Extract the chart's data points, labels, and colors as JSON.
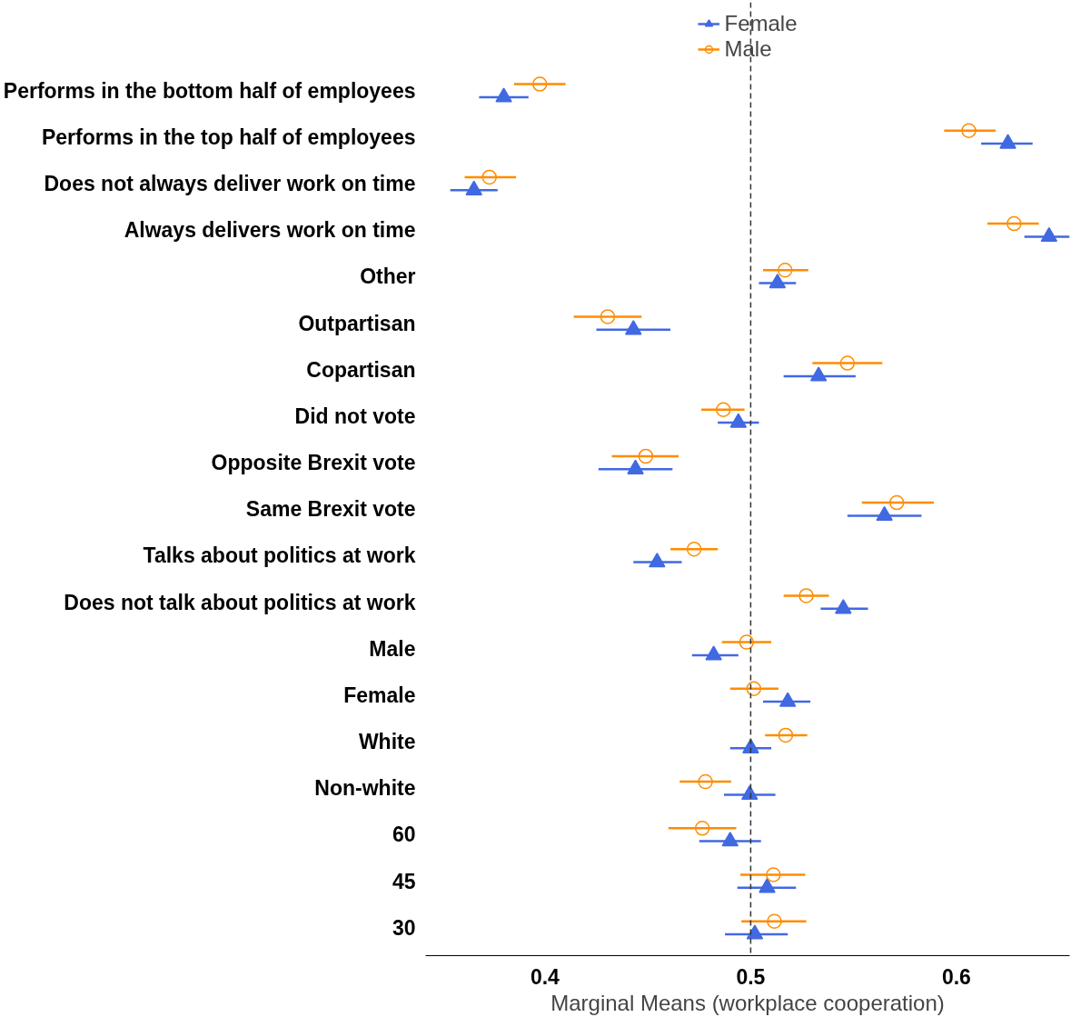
{
  "chart_data": {
    "type": "scatter",
    "orientation": "horizontal",
    "categories": [
      "Performs in the bottom half of employees",
      "Performs in the top half of employees",
      "Does not always deliver work on time",
      "Always delivers work on time",
      "Other",
      "Outpartisan",
      "Copartisan",
      "Did not vote",
      "Opposite Brexit vote",
      "Same Brexit vote",
      "Talks about politics at work",
      "Does not talk about politics at work",
      "Male",
      "Female",
      "White",
      "Non-white",
      "60",
      "45",
      "30"
    ],
    "series": [
      {
        "name": "Female",
        "color": "#4169e1",
        "marker": "triangle",
        "values": [
          0.38,
          0.625,
          0.3655,
          0.645,
          0.513,
          0.443,
          0.533,
          0.494,
          0.444,
          0.565,
          0.4545,
          0.545,
          0.482,
          0.518,
          0.5,
          0.4995,
          0.49,
          0.508,
          0.502
        ],
        "errors": [
          [
            0.368,
            0.392
          ],
          [
            0.612,
            0.637
          ],
          [
            0.354,
            0.377
          ],
          [
            0.633,
            0.655
          ],
          [
            0.504,
            0.522
          ],
          [
            0.425,
            0.461
          ],
          [
            0.516,
            0.551
          ],
          [
            0.484,
            0.504
          ],
          [
            0.426,
            0.462
          ],
          [
            0.547,
            0.583
          ],
          [
            0.443,
            0.4665
          ],
          [
            0.534,
            0.557
          ],
          [
            0.4715,
            0.494
          ],
          [
            0.506,
            0.529
          ],
          [
            0.49,
            0.51
          ],
          [
            0.487,
            0.512
          ],
          [
            0.475,
            0.505
          ],
          [
            0.4935,
            0.522
          ],
          [
            0.4875,
            0.518
          ]
        ]
      },
      {
        "name": "Male",
        "color": "#ff8c00",
        "marker": "circle",
        "values": [
          0.3975,
          0.606,
          0.373,
          0.628,
          0.5167,
          0.4305,
          0.547,
          0.4867,
          0.449,
          0.571,
          0.4725,
          0.527,
          0.498,
          0.5015,
          0.517,
          0.478,
          0.4765,
          0.511,
          0.5115
        ],
        "errors": [
          [
            0.385,
            0.41
          ],
          [
            0.594,
            0.619
          ],
          [
            0.361,
            0.386
          ],
          [
            0.615,
            0.64
          ],
          [
            0.506,
            0.528
          ],
          [
            0.414,
            0.447
          ],
          [
            0.53,
            0.564
          ],
          [
            0.476,
            0.497
          ],
          [
            0.4325,
            0.465
          ],
          [
            0.554,
            0.589
          ],
          [
            0.461,
            0.484
          ],
          [
            0.516,
            0.538
          ],
          [
            0.486,
            0.51
          ],
          [
            0.49,
            0.5135
          ],
          [
            0.507,
            0.5275
          ],
          [
            0.4655,
            0.4905
          ],
          [
            0.46,
            0.493
          ],
          [
            0.495,
            0.5265
          ],
          [
            0.4955,
            0.527
          ]
        ]
      }
    ],
    "xlim": [
      0.342,
      0.655
    ],
    "xticks": [
      0.4,
      0.5,
      0.6
    ],
    "xlabel": "Marginal Means (workplace cooperation)",
    "ref_lines": [
      {
        "axis": "x",
        "value": 0.5,
        "line_style": "dashed",
        "color": "#333333"
      }
    ],
    "legend": "top",
    "grid": false
  }
}
